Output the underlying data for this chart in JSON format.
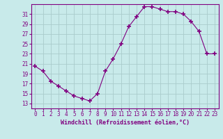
{
  "x": [
    0,
    1,
    2,
    3,
    4,
    5,
    6,
    7,
    8,
    9,
    10,
    11,
    12,
    13,
    14,
    15,
    16,
    17,
    18,
    19,
    20,
    21,
    22,
    23
  ],
  "y": [
    20.5,
    19.5,
    17.5,
    16.5,
    15.5,
    14.5,
    14.0,
    13.5,
    15.0,
    19.5,
    22.0,
    25.0,
    28.5,
    30.5,
    32.5,
    32.5,
    32.0,
    31.5,
    31.5,
    31.0,
    29.5,
    27.5,
    23.0,
    23.0
  ],
  "xlim": [
    -0.5,
    23.5
  ],
  "ylim": [
    12,
    33
  ],
  "yticks": [
    13,
    15,
    17,
    19,
    21,
    23,
    25,
    27,
    29,
    31
  ],
  "xticks": [
    0,
    1,
    2,
    3,
    4,
    5,
    6,
    7,
    8,
    9,
    10,
    11,
    12,
    13,
    14,
    15,
    16,
    17,
    18,
    19,
    20,
    21,
    22,
    23
  ],
  "xlabel": "Windchill (Refroidissement éolien,°C)",
  "line_color": "#800080",
  "marker": "D",
  "background_color": "#c8eaea",
  "grid_color": "#aacccc",
  "tick_label_color": "#800080",
  "xlabel_color": "#800080",
  "spine_color": "#800080"
}
